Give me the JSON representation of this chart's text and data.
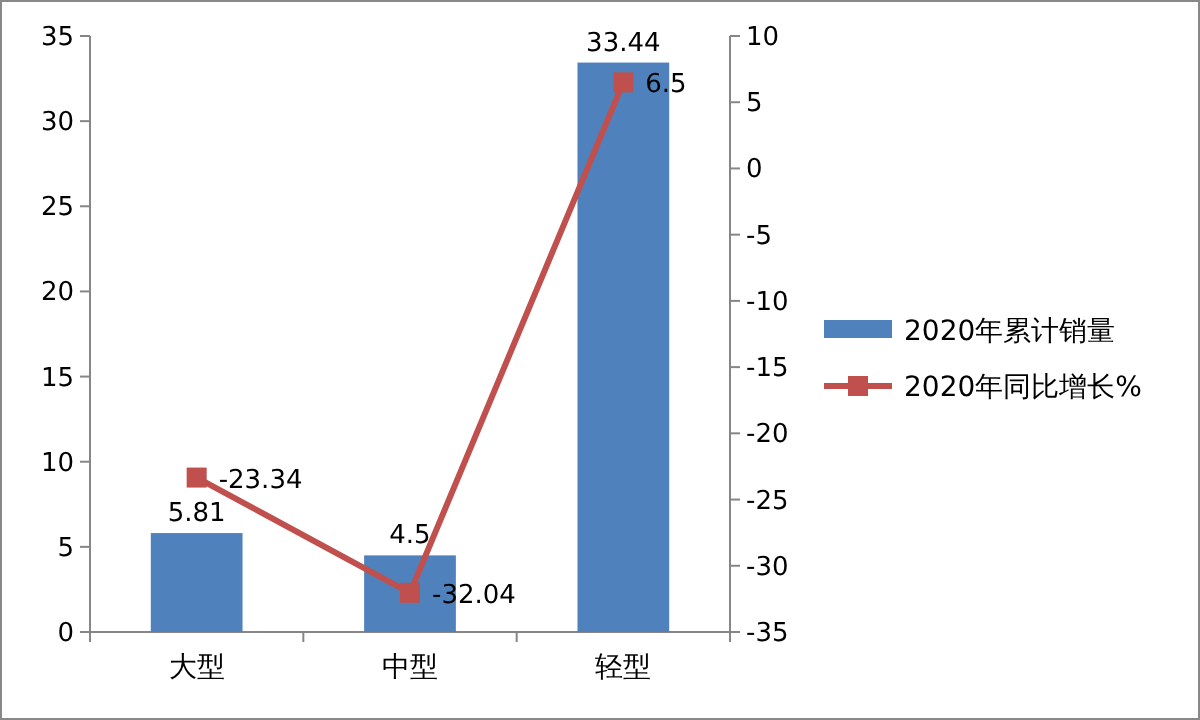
{
  "chart_data": {
    "type": "bar",
    "categories": [
      "大型",
      "中型",
      "轻型"
    ],
    "series": [
      {
        "name": "2020年累计销量",
        "color": "#4f81bd",
        "values": [
          5.81,
          4.5,
          33.44
        ]
      },
      {
        "name": "2020年同比增长%",
        "type": "line",
        "axis": "y2",
        "color": "#c0504d",
        "values": [
          -23.34,
          -32.04,
          6.5
        ],
        "marker": "square"
      }
    ],
    "ylim": [
      0,
      35
    ],
    "yticks": [
      0,
      5,
      10,
      15,
      20,
      25,
      30,
      35
    ],
    "y2lim": [
      -35,
      10
    ],
    "y2ticks": [
      -35,
      -30,
      -25,
      -20,
      -15,
      -10,
      -5,
      0,
      5,
      10
    ],
    "data_labels": true,
    "legend": "right",
    "grid": false
  }
}
